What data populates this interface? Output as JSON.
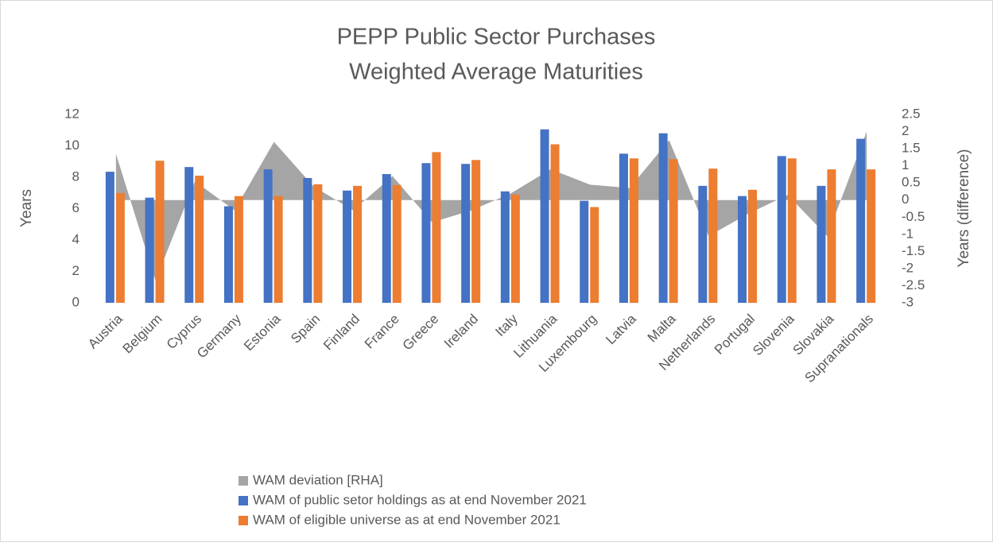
{
  "chart_data": {
    "type": "bar",
    "title": "PEPP Public Sector Purchases",
    "subtitle": "Weighted Average Maturities",
    "y_label": "Years",
    "y2_label": "Years (difference)",
    "categories": [
      "Austria",
      "Belgium",
      "Cyprus",
      "Germany",
      "Estonia",
      "Spain",
      "Finland",
      "France",
      "Greece",
      "Ireland",
      "Italy",
      "Lithuania",
      "Luxembourg",
      "Latvia",
      "Malta",
      "Netherlands",
      "Portugal",
      "Slovenia",
      "Slovakia",
      "Supranationals"
    ],
    "series": [
      {
        "name": "WAM deviation [RHA]",
        "color": "#a5a5a5",
        "kind": "area",
        "axis": "y2",
        "values": [
          1.35,
          -2.35,
          0.55,
          -0.3,
          1.7,
          0.4,
          -0.3,
          0.7,
          -0.65,
          -0.3,
          0.2,
          0.9,
          0.45,
          0.35,
          1.75,
          -1.05,
          -0.4,
          0.15,
          -1.05,
          2.0
        ]
      },
      {
        "name": "WAM of public setor holdings as at end November 2021",
        "color": "#4472c4",
        "kind": "bar",
        "values": [
          8.35,
          6.7,
          8.65,
          6.15,
          8.5,
          7.95,
          7.15,
          8.2,
          8.9,
          8.85,
          7.1,
          11.05,
          6.5,
          9.5,
          10.8,
          7.45,
          6.8,
          9.35,
          7.45,
          10.45
        ]
      },
      {
        "name": "WAM of eligible universe as at end November 2021",
        "color": "#ed7d31",
        "kind": "bar",
        "values": [
          7.0,
          9.05,
          8.1,
          6.8,
          6.8,
          7.55,
          7.45,
          7.5,
          9.6,
          9.1,
          6.9,
          10.1,
          6.1,
          9.2,
          9.15,
          8.55,
          7.2,
          9.2,
          8.5,
          8.5
        ]
      }
    ],
    "ylim": [
      0,
      12
    ],
    "yticks": [
      0,
      2,
      4,
      6,
      8,
      10,
      12
    ],
    "y2lim": [
      -3,
      2.5
    ],
    "y2ticks": [
      2.5,
      2,
      1.5,
      1,
      0.5,
      0,
      -0.5,
      -1,
      -1.5,
      -2,
      -2.5,
      -3
    ],
    "grid": false,
    "legend": "bottom"
  }
}
